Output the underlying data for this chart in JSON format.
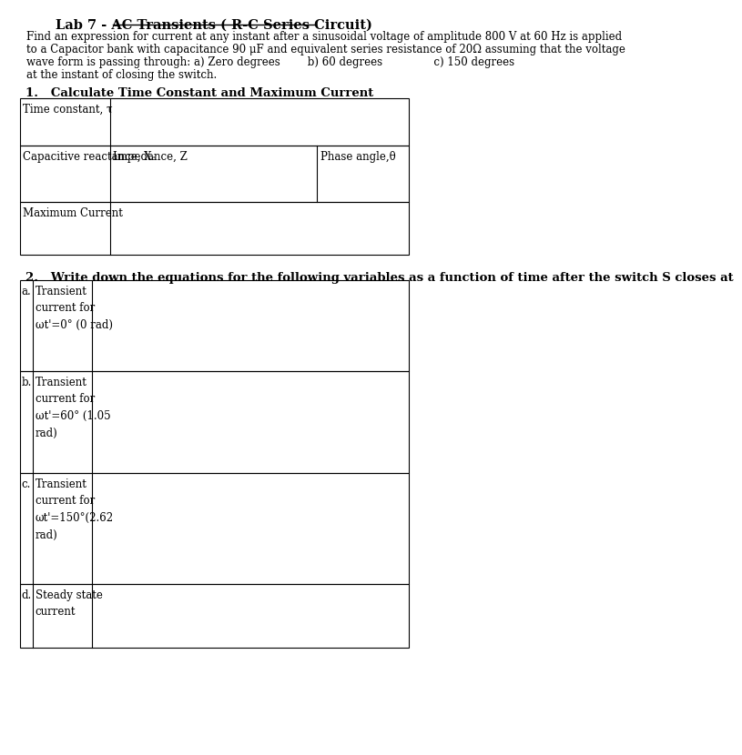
{
  "title": "Lab 7 - AC Transients ( R-C Series Circuit)",
  "bg_color": "#ffffff",
  "text_color": "#000000",
  "intro_line1": "Find an expression for current at any instant after a sinusoidal voltage of amplitude 800 V at 60 Hz is applied",
  "intro_line2": "to a Capacitor bank with capacitance 90 μF and equivalent series resistance of 20Ω assuming that the voltage",
  "intro_line3": "wave form is passing through: a) Zero degrees        b) 60 degrees               c) 150 degrees",
  "intro_line4": "at the instant of closing the switch.",
  "section1_title": "1.   Calculate Time Constant and Maximum Current",
  "section2_title": "2.   Write down the equations for the following variables as a function of time after the switch S closes at",
  "t1_row1_label": "Time constant, τ",
  "t1_row2_col1": "Capacitive reactance, Xₑ",
  "t1_row2_col2": "Impedance, Z",
  "t1_row2_col3": "Phase angle,θ",
  "t1_row3_label": "Maximum Current",
  "table2_rows": [
    [
      "a.",
      "Transient\ncurrent for\nωt'=0° (0 rad)"
    ],
    [
      "b.",
      "Transient\ncurrent for\nωt'=60° (1.05\nrad)"
    ],
    [
      "c.",
      "Transient\ncurrent for\nωt'=150°(2.62\nrad)"
    ],
    [
      "d.",
      "Steady state\ncurrent"
    ]
  ],
  "font_family": "DejaVu Serif",
  "title_fontsize": 10.5,
  "body_fontsize": 8.5,
  "section_fontsize": 9.5
}
